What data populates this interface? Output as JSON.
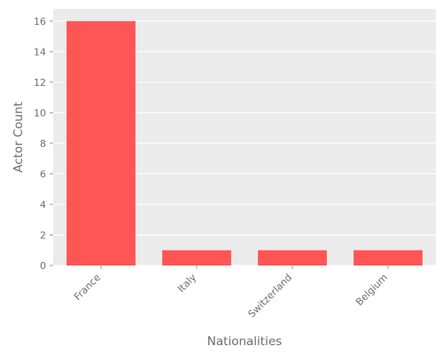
{
  "chart_data": {
    "type": "bar",
    "categories": [
      "France",
      "Italy",
      "Switzerland",
      "Belgium"
    ],
    "values": [
      16,
      1,
      1,
      1
    ],
    "title": "",
    "xlabel": "Nationalities",
    "ylabel": "Actor Count",
    "ylim": [
      0,
      16.8
    ],
    "yticks": [
      0,
      2,
      4,
      6,
      8,
      10,
      12,
      14,
      16
    ],
    "grid": true,
    "bar_color": "#ff5555",
    "background_color": "#ebebeb"
  }
}
